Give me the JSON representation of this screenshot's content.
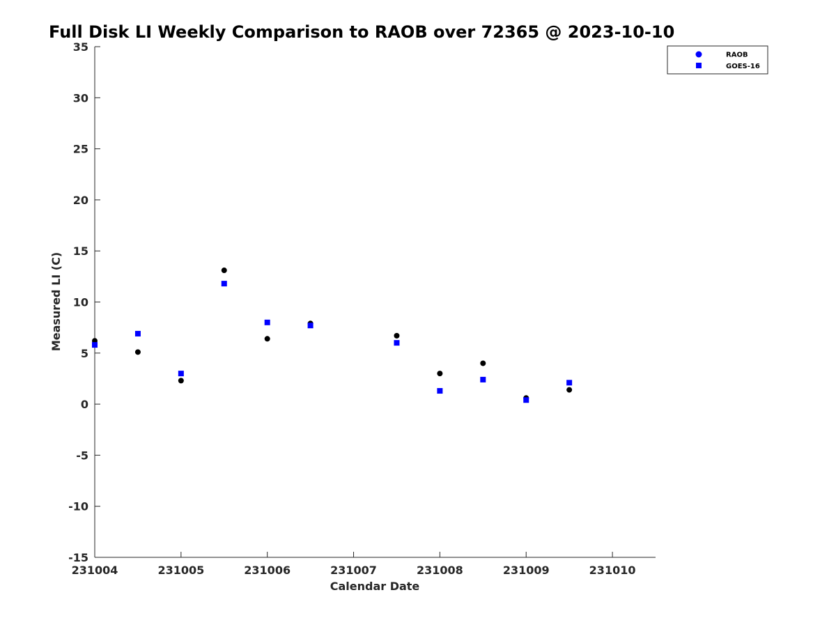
{
  "chart_data": {
    "type": "scatter",
    "title": "Full Disk LI Weekly Comparison to RAOB over 72365 @ 2023-10-10",
    "xlabel": "Calendar Date",
    "ylabel": "Measured LI (C)",
    "x_ticks": [
      "231004",
      "231005",
      "231006",
      "231007",
      "231008",
      "231009",
      "231010"
    ],
    "y_ticks": [
      "35",
      "30",
      "25",
      "20",
      "15",
      "10",
      "5",
      "0",
      "-5",
      "-10",
      "-15"
    ],
    "xlim": [
      "2023-10-04 00:00",
      "2023-10-10 12:00"
    ],
    "ylim": [
      -15,
      35
    ],
    "grid": false,
    "legend_position": "top-right",
    "series": [
      {
        "name": "RAOB",
        "marker": "circle",
        "color": "#000000",
        "legend_color": "#0000ff",
        "points": [
          {
            "x": "2023-10-04 00:00",
            "y": 6.2
          },
          {
            "x": "2023-10-04 12:00",
            "y": 5.1
          },
          {
            "x": "2023-10-05 00:00",
            "y": 2.3
          },
          {
            "x": "2023-10-05 12:00",
            "y": 13.1
          },
          {
            "x": "2023-10-06 00:00",
            "y": 6.4
          },
          {
            "x": "2023-10-06 12:00",
            "y": 7.9
          },
          {
            "x": "2023-10-07 12:00",
            "y": 6.7
          },
          {
            "x": "2023-10-08 00:00",
            "y": 3.0
          },
          {
            "x": "2023-10-08 12:00",
            "y": 4.0
          },
          {
            "x": "2023-10-09 00:00",
            "y": 0.6
          },
          {
            "x": "2023-10-09 12:00",
            "y": 1.4
          }
        ]
      },
      {
        "name": "GOES-16",
        "marker": "square",
        "color": "#0000ff",
        "points": [
          {
            "x": "2023-10-04 00:00",
            "y": 5.8
          },
          {
            "x": "2023-10-04 12:00",
            "y": 6.9
          },
          {
            "x": "2023-10-05 00:00",
            "y": 3.0
          },
          {
            "x": "2023-10-05 12:00",
            "y": 11.8
          },
          {
            "x": "2023-10-06 00:00",
            "y": 8.0
          },
          {
            "x": "2023-10-06 12:00",
            "y": 7.7
          },
          {
            "x": "2023-10-07 12:00",
            "y": 6.0
          },
          {
            "x": "2023-10-08 00:00",
            "y": 1.3
          },
          {
            "x": "2023-10-08 12:00",
            "y": 2.4
          },
          {
            "x": "2023-10-09 00:00",
            "y": 0.4
          },
          {
            "x": "2023-10-09 12:00",
            "y": 2.1
          }
        ]
      }
    ]
  }
}
